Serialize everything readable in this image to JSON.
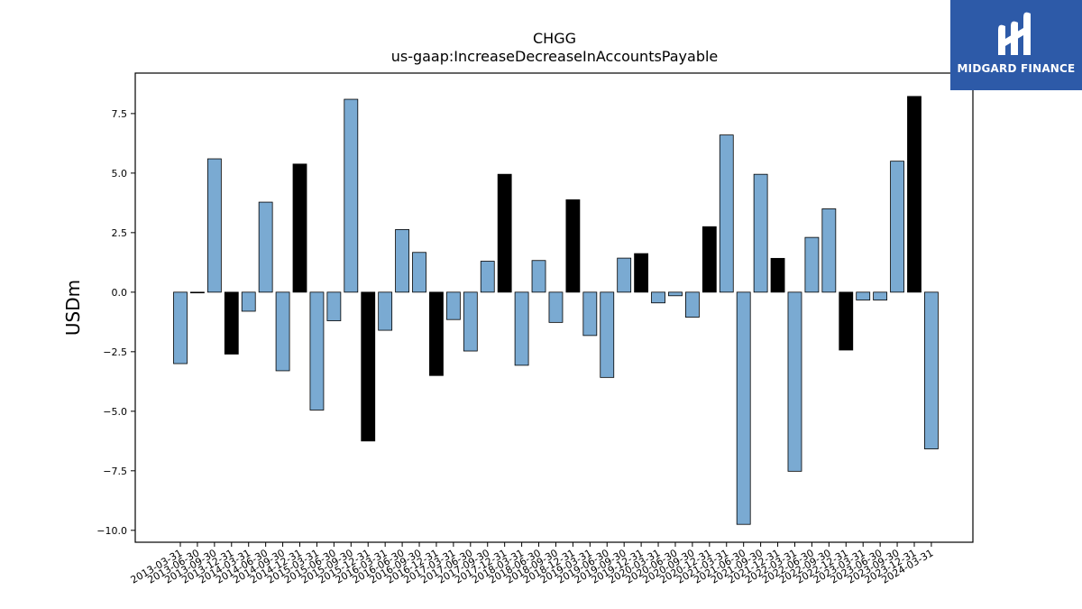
{
  "chart_data": {
    "type": "bar",
    "title": "CHGG",
    "subtitle": "us-gaap:IncreaseDecreaseInAccountsPayable",
    "ylabel": "USDm",
    "xlabel": "",
    "ylim": [
      -10.5,
      9.2
    ],
    "yticks": [
      -10.0,
      -7.5,
      -5.0,
      -2.5,
      0.0,
      2.5,
      5.0,
      7.5
    ],
    "grid": false,
    "colors": {
      "quarter": "#7aaad2",
      "q4": "#000000",
      "edge": "#000000"
    },
    "categories": [
      "2013-03-31",
      "2013-06-30",
      "2013-09-30",
      "2013-12-31",
      "2014-03-31",
      "2014-06-30",
      "2014-09-30",
      "2014-12-31",
      "2015-03-31",
      "2015-06-30",
      "2015-09-30",
      "2015-12-31",
      "2016-03-31",
      "2016-06-30",
      "2016-09-30",
      "2016-12-31",
      "2017-03-31",
      "2017-06-30",
      "2017-09-30",
      "2017-12-31",
      "2018-03-31",
      "2018-06-30",
      "2018-09-30",
      "2018-12-31",
      "2019-03-31",
      "2019-06-30",
      "2019-09-30",
      "2019-12-31",
      "2020-03-31",
      "2020-06-30",
      "2020-09-30",
      "2020-12-31",
      "2021-03-31",
      "2021-06-30",
      "2021-09-30",
      "2021-12-31",
      "2022-03-31",
      "2022-06-30",
      "2022-09-30",
      "2022-12-31",
      "2023-03-31",
      "2023-06-30",
      "2023-09-30",
      "2023-12-31",
      "2024-03-31"
    ],
    "values": [
      -3.0,
      0.0,
      5.6,
      -2.6,
      -0.8,
      3.78,
      -3.3,
      5.38,
      -4.95,
      -1.2,
      8.1,
      -6.25,
      -1.6,
      2.63,
      1.67,
      -3.5,
      -1.15,
      -2.47,
      1.3,
      4.95,
      -3.07,
      1.33,
      -1.27,
      3.88,
      -1.82,
      -3.58,
      1.43,
      1.62,
      -0.45,
      -0.15,
      -1.05,
      2.75,
      6.6,
      -9.75,
      4.95,
      1.42,
      -7.52,
      2.3,
      3.5,
      -2.43,
      -0.33,
      -0.33,
      5.5,
      8.22,
      -6.58
    ]
  },
  "logo": {
    "text": "MIDGARD FINANCE",
    "icon": "midgard-logo-icon"
  }
}
